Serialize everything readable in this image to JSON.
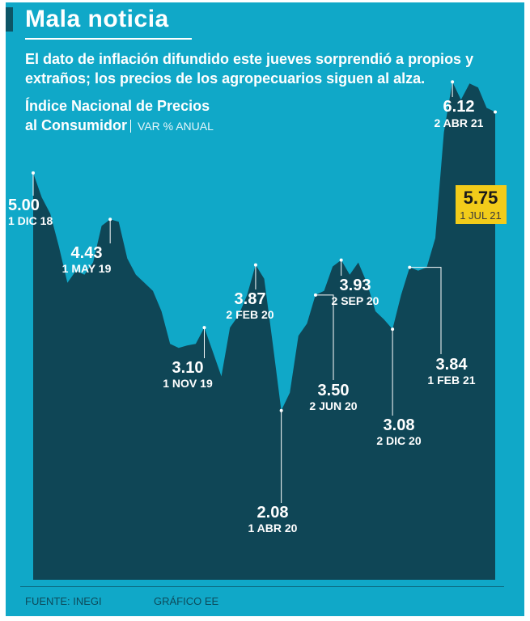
{
  "header": {
    "headline": "Mala noticia",
    "subtitle": "El dato de inflación difundido este jueves sorprendió a propios y extraños; los precios de los agropecuarios siguen al alza."
  },
  "chart_data": {
    "type": "area",
    "title_line1": "Índice Nacional de Precios",
    "title_line2": "al Consumidor",
    "unit": "VAR % ANUAL",
    "ylim": [
      0,
      6.5
    ],
    "fill_color": "#0f4656",
    "label_color": "#ffffff",
    "highlight_color": "#f2cc1a",
    "x_labels_visible": false,
    "values": [
      5.0,
      4.7,
      4.5,
      4.1,
      3.65,
      3.8,
      3.75,
      3.9,
      4.35,
      4.43,
      4.4,
      3.95,
      3.75,
      3.65,
      3.55,
      3.3,
      2.9,
      2.85,
      2.88,
      2.9,
      3.1,
      2.8,
      2.5,
      3.1,
      3.25,
      3.5,
      3.87,
      3.7,
      2.9,
      2.08,
      2.3,
      3.0,
      3.15,
      3.5,
      3.55,
      3.85,
      3.93,
      3.75,
      3.9,
      3.65,
      3.3,
      3.2,
      3.08,
      3.5,
      3.84,
      3.8,
      3.84,
      4.2,
      5.5,
      6.12,
      5.9,
      6.1,
      6.05,
      5.8,
      5.75
    ],
    "annotations": [
      {
        "index": 0,
        "value": "5.00",
        "date": "1 DIC 18"
      },
      {
        "index": 9,
        "value": "4.43",
        "date": "1 MAY 19"
      },
      {
        "index": 20,
        "value": "3.10",
        "date": "1 NOV 19"
      },
      {
        "index": 26,
        "value": "3.87",
        "date": "2 FEB 20"
      },
      {
        "index": 29,
        "value": "2.08",
        "date": "1 ABR 20"
      },
      {
        "index": 33,
        "value": "3.50",
        "date": "2 JUN 20"
      },
      {
        "index": 36,
        "value": "3.93",
        "date": "2 SEP 20"
      },
      {
        "index": 42,
        "value": "3.08",
        "date": "2 DIC 20"
      },
      {
        "index": 44,
        "value": "3.84",
        "date": "1 FEB 21"
      },
      {
        "index": 49,
        "value": "6.12",
        "date": "2 ABR 21"
      },
      {
        "index": 54,
        "value": "5.75",
        "date": "1 JUL 21",
        "highlight": true
      }
    ]
  },
  "footer": {
    "source": "FUENTE: INEGI",
    "credit": "GRÁFICO EE"
  }
}
